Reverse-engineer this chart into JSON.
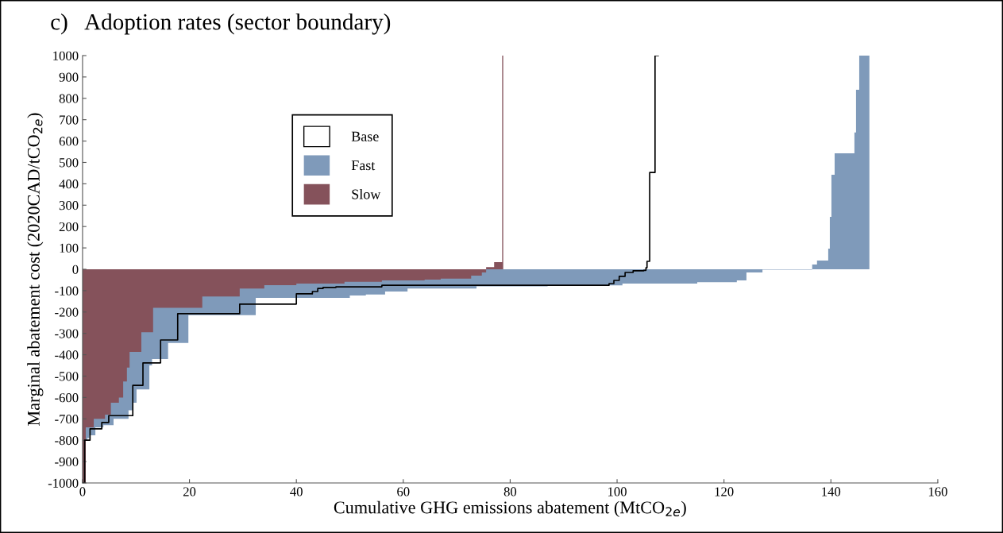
{
  "chart_data": {
    "type": "step",
    "title": "c)   Adoption rates (sector boundary)",
    "xlabel": "Cumulative GHG emissions abatement (MtCO$_{2e}$)",
    "ylabel": "Marginal abatement cost (2020CAD/tCO$_{2e}$)",
    "xlim": [
      0,
      160
    ],
    "xticks": [
      0,
      20,
      40,
      60,
      80,
      100,
      120,
      140,
      160
    ],
    "ylim": [
      -1000,
      1000
    ],
    "yticks": [
      -1000,
      -900,
      -800,
      -700,
      -600,
      -500,
      -400,
      -300,
      -200,
      -100,
      0,
      100,
      200,
      300,
      400,
      500,
      600,
      700,
      800,
      900,
      1000
    ],
    "grid": false,
    "legend": "top left",
    "series": [
      {
        "name": "Fast",
        "type": "area",
        "color": "#7f9aba",
        "x": [
          0,
          0.9,
          1.3,
          2.4,
          3.9,
          5.8,
          8.6,
          9.4,
          10.1,
          12.5,
          13,
          16,
          19.8,
          32.4,
          50,
          53,
          56.6,
          60.8,
          73.7,
          87,
          92.6,
          101,
          115,
          122.4,
          124.2,
          127.2,
          136.5,
          137.4,
          139.5,
          139.8,
          140.1,
          140.7,
          144.4,
          144.7,
          145.3,
          147.2
        ],
        "values": [
          -800,
          -790,
          -777,
          -740,
          -730,
          -700,
          -660,
          -625,
          -562,
          -450,
          -420,
          -345,
          -215,
          -134,
          -123,
          -118,
          -104,
          -90,
          -80,
          -78,
          -75,
          -67,
          -60,
          -52,
          -15,
          -2,
          22,
          41,
          97,
          245,
          442,
          543,
          640,
          840,
          1000,
          1000
        ]
      },
      {
        "name": "Slow",
        "type": "area",
        "color": "#85525b",
        "x": [
          0,
          0.6,
          2.1,
          4.2,
          5.3,
          6.8,
          7.6,
          8.3,
          8.8,
          11,
          13.2,
          22.4,
          29.4,
          34,
          40,
          49,
          56,
          64,
          67,
          72.7,
          74.7,
          75.5,
          77,
          78.5,
          78.7
        ],
        "values": [
          -1000,
          -740,
          -700,
          -680,
          -625,
          -600,
          -525,
          -460,
          -387,
          -295,
          -180,
          -127,
          -90,
          -74,
          -67,
          -59,
          -52,
          -48,
          -44,
          -30,
          -15,
          10,
          33,
          1000,
          1000
        ]
      },
      {
        "name": "Base",
        "color": "#000000",
        "x": [
          0,
          0.4,
          1.4,
          3.6,
          4.9,
          9.4,
          11.3,
          14.6,
          17.8,
          29.4,
          40,
          43,
          44,
          45,
          47.4,
          56,
          98.5,
          99.4,
          100.4,
          101.5,
          103,
          105,
          105.4,
          105.6,
          106.1,
          107.1,
          107.7
        ],
        "values": [
          -1000,
          -800,
          -747,
          -717,
          -685,
          -543,
          -438,
          -331,
          -208,
          -163,
          -115,
          -104,
          -90,
          -85,
          -82,
          -75,
          -67,
          -52,
          -33,
          -15,
          -7,
          -5,
          7,
          37,
          453,
          1000,
          1000
        ]
      }
    ]
  }
}
